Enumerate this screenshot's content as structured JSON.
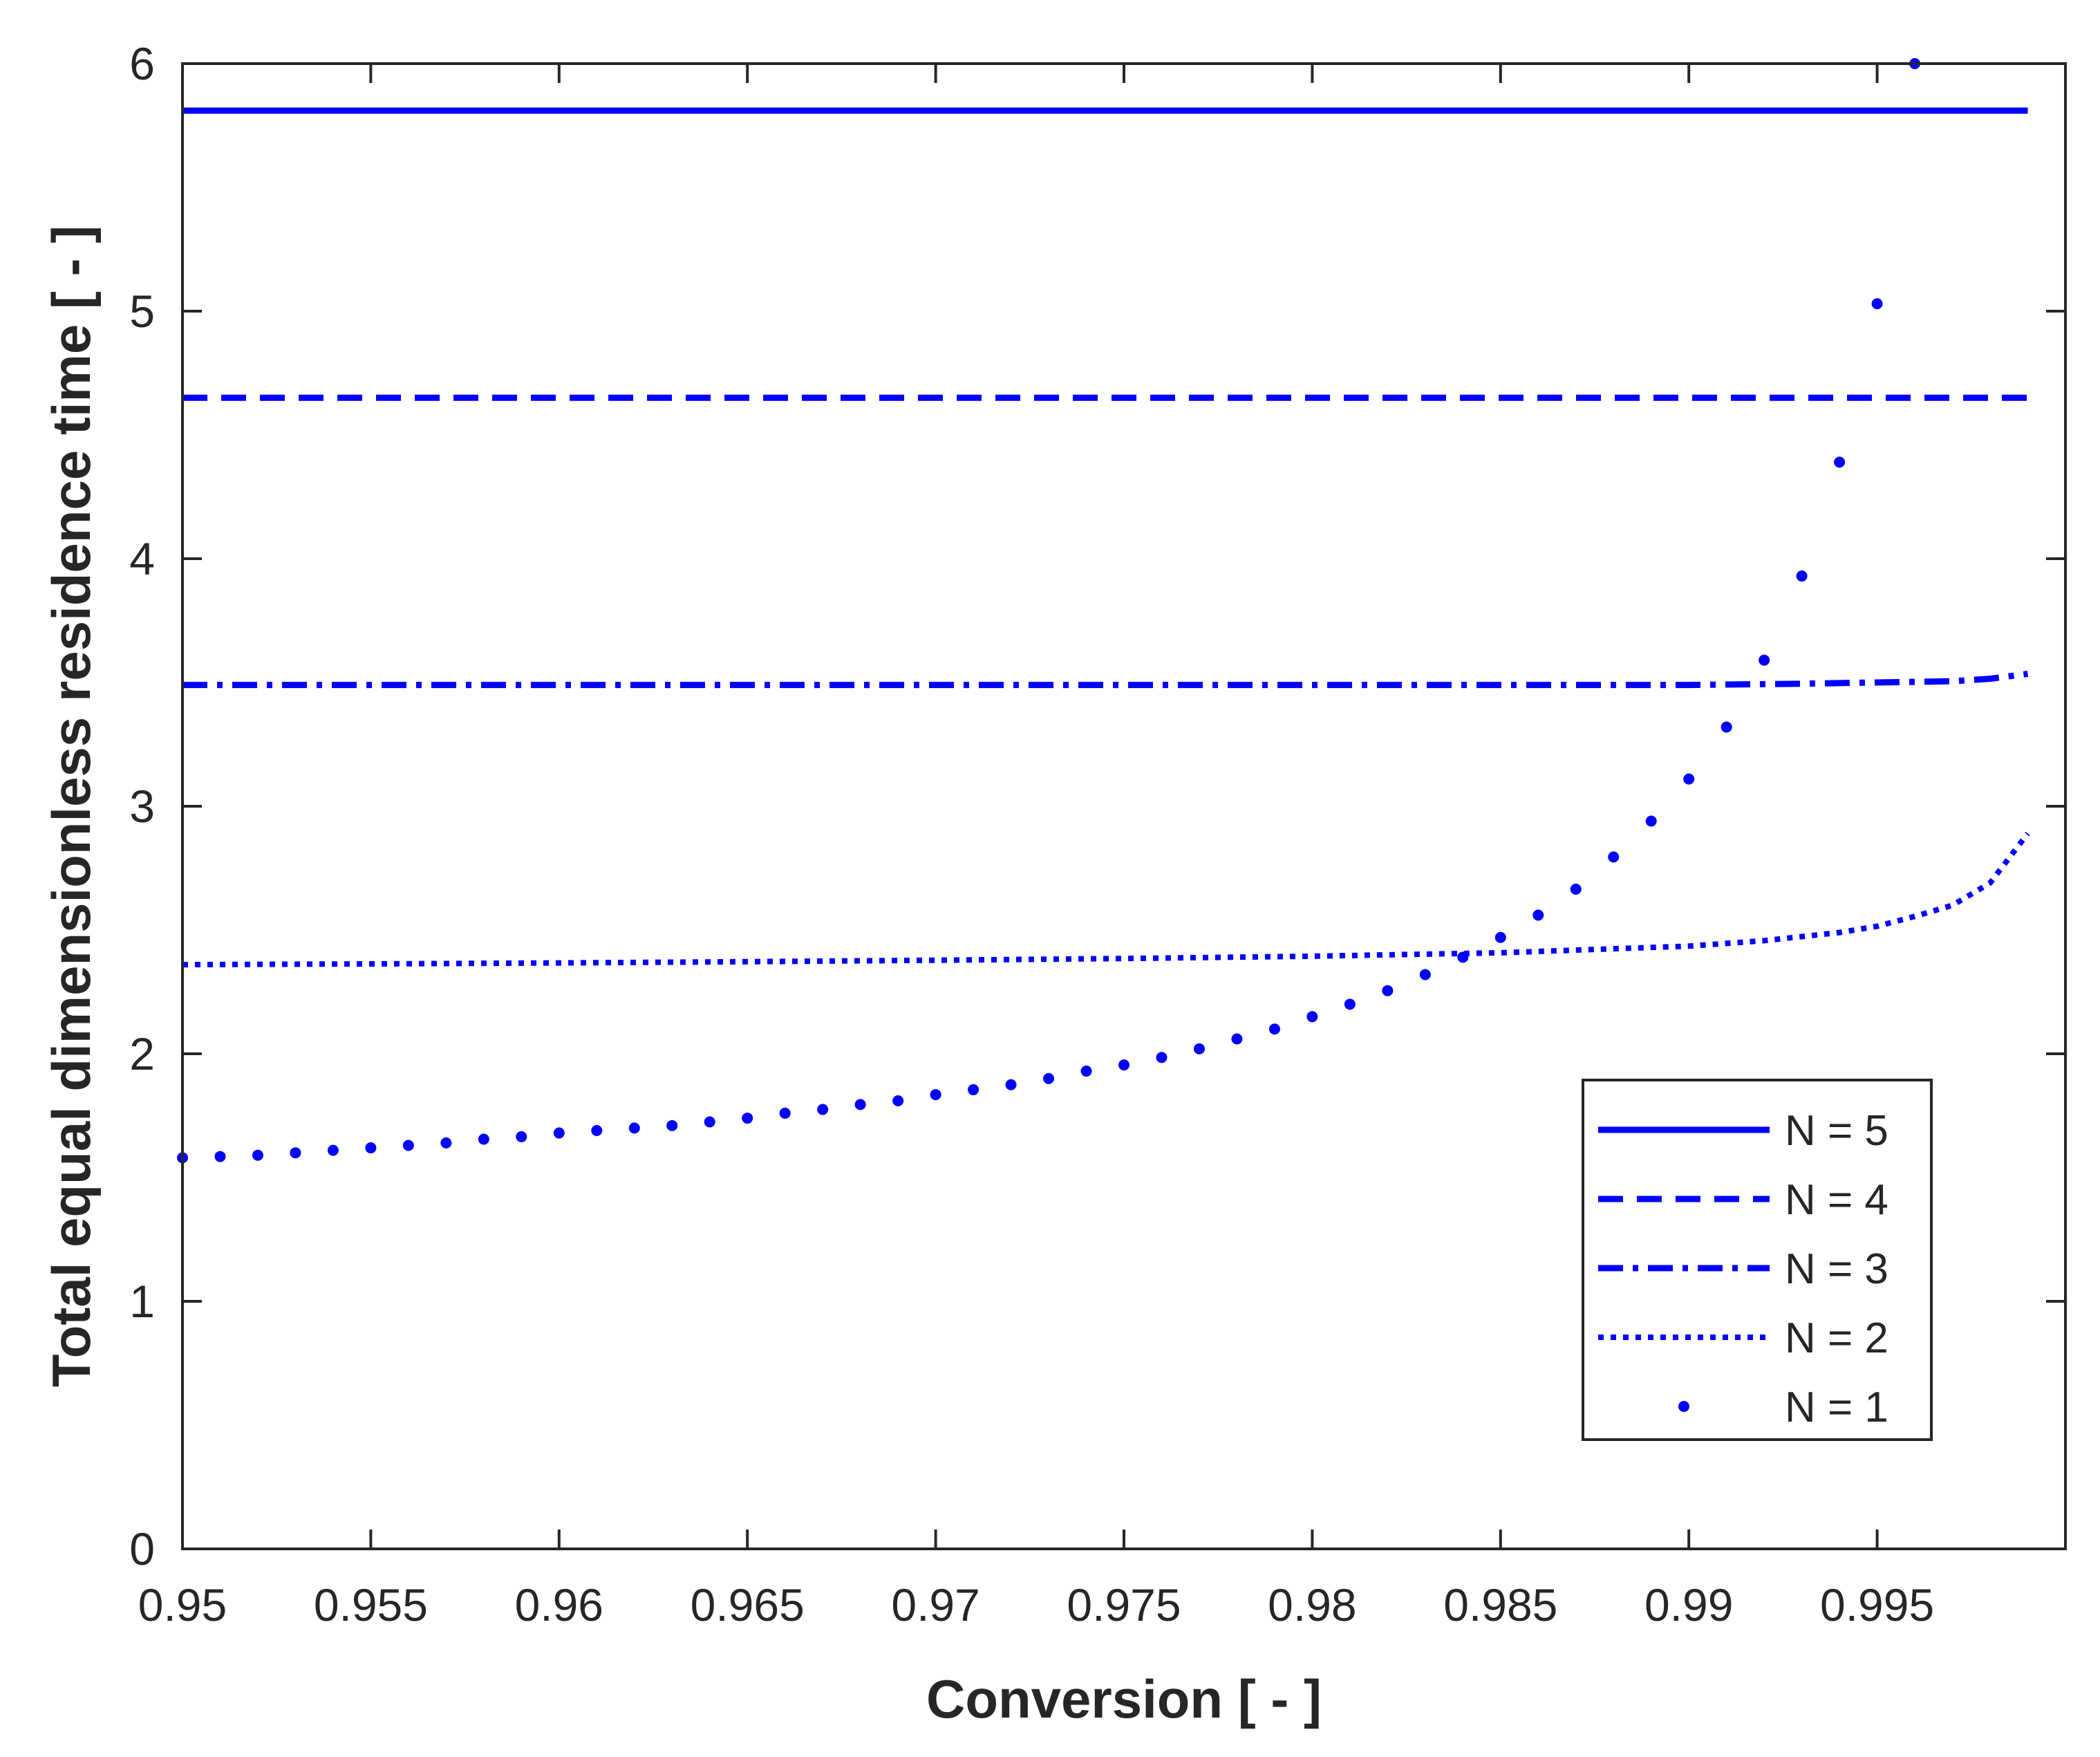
{
  "chart_data": {
    "type": "line",
    "title": "",
    "xlabel": "Conversion [ - ]",
    "ylabel": "Total equal dimensionless residence time [ - ]",
    "xlim": [
      0.95,
      1.0
    ],
    "ylim": [
      0,
      6
    ],
    "xticks": [
      0.95,
      0.955,
      0.96,
      0.965,
      0.97,
      0.975,
      0.98,
      0.985,
      0.99,
      0.995
    ],
    "xtick_labels": [
      "0.95",
      "0.955",
      "0.96",
      "0.965",
      "0.97",
      "0.975",
      "0.98",
      "0.985",
      "0.99",
      "0.995"
    ],
    "yticks": [
      0,
      1,
      2,
      3,
      4,
      5,
      6
    ],
    "ytick_labels": [
      "0",
      "1",
      "2",
      "3",
      "4",
      "5",
      "6"
    ],
    "grid": false,
    "legend": "bottom-right",
    "color": "#0000ff",
    "series": [
      {
        "name": "N = 5",
        "style": "solid",
        "x": [
          0.95,
          0.999
        ],
        "y": [
          5.81,
          5.81
        ]
      },
      {
        "name": "N = 4",
        "style": "dashed",
        "x": [
          0.95,
          0.999
        ],
        "y": [
          4.65,
          4.65
        ]
      },
      {
        "name": "N = 3",
        "style": "dashdot",
        "x": [
          0.95,
          0.96,
          0.97,
          0.98,
          0.985,
          0.99,
          0.993,
          0.995,
          0.997,
          0.998,
          0.999
        ],
        "y": [
          3.49,
          3.49,
          3.49,
          3.49,
          3.49,
          3.49,
          3.495,
          3.5,
          3.505,
          3.515,
          3.535
        ]
      },
      {
        "name": "N = 2",
        "style": "dotted",
        "x": [
          0.95,
          0.955,
          0.96,
          0.965,
          0.97,
          0.975,
          0.98,
          0.985,
          0.99,
          0.992,
          0.994,
          0.995,
          0.996,
          0.997,
          0.998,
          0.999
        ],
        "y": [
          2.36,
          2.363,
          2.367,
          2.372,
          2.378,
          2.385,
          2.394,
          2.408,
          2.435,
          2.457,
          2.49,
          2.515,
          2.555,
          2.6,
          2.69,
          2.89
        ]
      },
      {
        "name": "N = 1",
        "style": "points",
        "x": [
          0.95,
          0.951,
          0.952,
          0.953,
          0.954,
          0.955,
          0.956,
          0.957,
          0.958,
          0.959,
          0.96,
          0.961,
          0.962,
          0.963,
          0.964,
          0.965,
          0.966,
          0.967,
          0.968,
          0.969,
          0.97,
          0.971,
          0.972,
          0.973,
          0.974,
          0.975,
          0.976,
          0.977,
          0.978,
          0.979,
          0.98,
          0.981,
          0.982,
          0.983,
          0.984,
          0.985,
          0.986,
          0.987,
          0.988,
          0.989,
          0.99,
          0.991,
          0.992,
          0.993,
          0.994,
          0.995,
          0.996
        ],
        "y": [
          1.58,
          1.585,
          1.59,
          1.6,
          1.61,
          1.62,
          1.63,
          1.64,
          1.655,
          1.665,
          1.68,
          1.69,
          1.7,
          1.71,
          1.725,
          1.74,
          1.76,
          1.775,
          1.795,
          1.81,
          1.835,
          1.855,
          1.875,
          1.9,
          1.93,
          1.955,
          1.985,
          2.02,
          2.06,
          2.1,
          2.15,
          2.2,
          2.255,
          2.32,
          2.39,
          2.47,
          2.56,
          2.665,
          2.795,
          2.94,
          3.11,
          3.32,
          3.59,
          3.93,
          4.39,
          5.03,
          6.0
        ]
      }
    ]
  }
}
